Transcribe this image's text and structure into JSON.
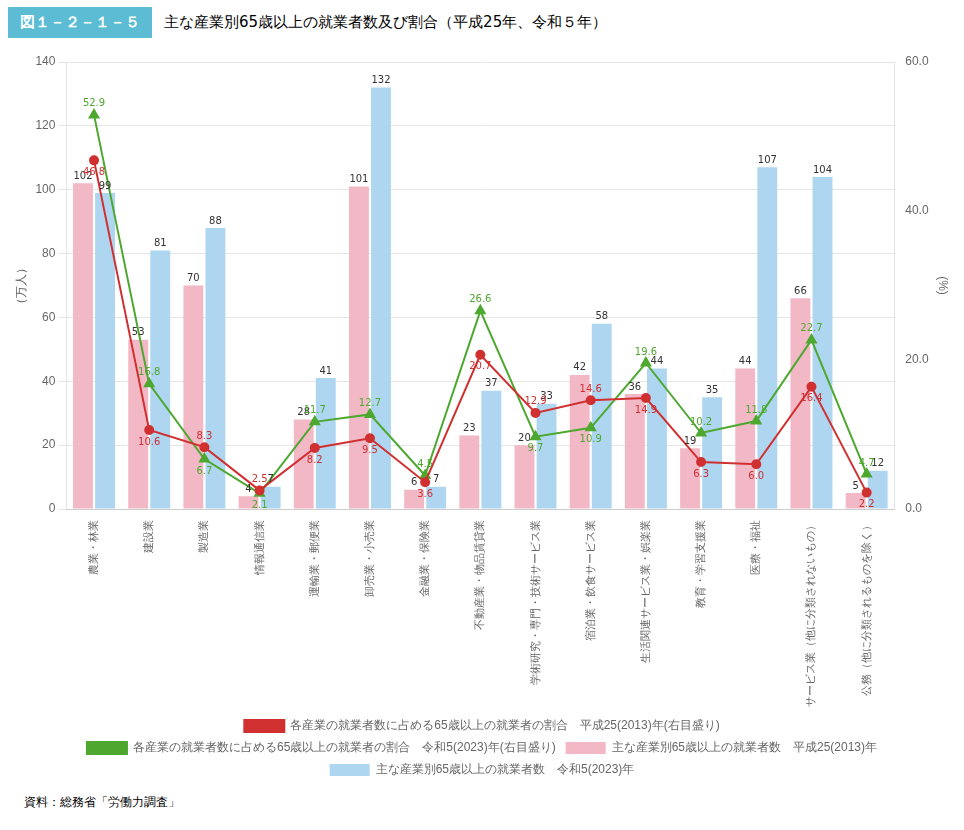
{
  "chart_data": {
    "type": "bar",
    "title": "主な産業別65歳以上の就業者数及び割合（平成25年、令和５年）",
    "subtitle": "図１－２－１－５",
    "y_label": "（万人）",
    "y2_label": "(%)",
    "annotations": [
      "資料：総務省「労働力調査」"
    ],
    "categories": [
      "農業・林業",
      "建設業",
      "製造業",
      "情報通信業",
      "運輸業・郵便業",
      "卸売業・小売業",
      "金融業・保険業",
      "不動産業・物品賃貸業",
      "学術研究・専門・技術サービス業",
      "宿泊業・飲食サービス業",
      "生活関連サービス業・娯楽業",
      "教育・学習支援業",
      "医療・福祉",
      "サービス業（他に分類されないもの）",
      "公務（他に分類されるものを除く）"
    ],
    "series": [
      {
        "name": "主な産業別65歳以上の就業者数　平成25(2013)年",
        "type": "bar",
        "color": "#f2b8c6",
        "values": [
          102,
          53,
          70,
          4,
          28,
          101,
          6,
          23,
          20,
          42,
          36,
          19,
          44,
          66,
          5
        ]
      },
      {
        "name": "主な産業別65歳以上の就業者数　令和5(2023)年",
        "type": "bar",
        "color": "#aed6f0",
        "values": [
          99,
          81,
          88,
          7,
          41,
          132,
          7,
          37,
          33,
          58,
          44,
          35,
          107,
          104,
          12
        ]
      },
      {
        "name": "各産業の就業者数に占める65歳以上の就業者の割合　平成25(2013)年(右目盛り)",
        "type": "line",
        "color": "#d03030",
        "marker": "circle",
        "axis": "y2",
        "values": [
          46.8,
          10.6,
          8.3,
          2.5,
          8.2,
          9.5,
          3.6,
          20.7,
          12.9,
          14.6,
          14.9,
          6.3,
          6.0,
          16.4,
          2.2
        ],
        "value_labels": [
          "46.8",
          "10.6",
          "8.3",
          "2.5",
          "8.2",
          "9.5",
          "3.6",
          "20.7",
          "12.9",
          "14.6",
          "14.9",
          "6.3",
          "6.0",
          "16.4",
          "2.2"
        ]
      },
      {
        "name": "各産業の就業者数に占める65歳以上の就業者の割合　令和5(2023)年(右目盛り)",
        "type": "line",
        "color": "#4ea830",
        "marker": "triangle",
        "axis": "y2",
        "values": [
          52.9,
          16.8,
          6.7,
          2.1,
          11.7,
          12.7,
          4.5,
          26.6,
          9.7,
          10.9,
          19.6,
          10.2,
          11.8,
          22.7,
          4.7
        ]
      }
    ],
    "ylim": [
      0,
      140
    ],
    "yticks": [
      0,
      20,
      40,
      60,
      80,
      100,
      120,
      140
    ],
    "y2lim": [
      0,
      60.0
    ],
    "y2ticks": [
      {
        "value": 0,
        "label": "0.0"
      },
      {
        "value": 20,
        "label": "20.0"
      },
      {
        "value": 40,
        "label": "40.0"
      },
      {
        "value": 60,
        "label": "60.0"
      }
    ],
    "grid": "y",
    "legend": "bottom",
    "data_labels": true
  }
}
